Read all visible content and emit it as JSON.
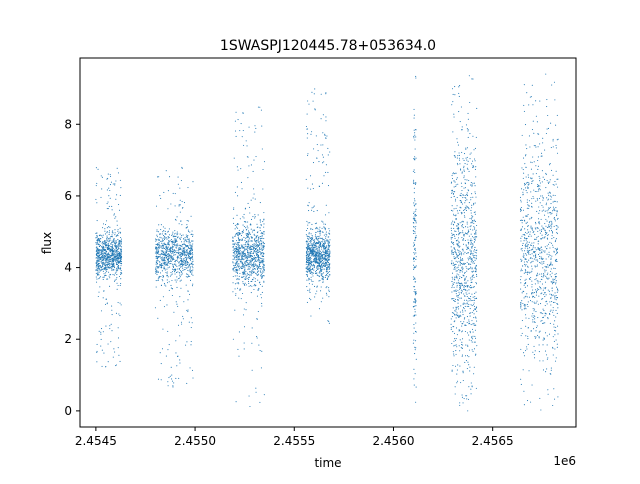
{
  "chart_data": {
    "type": "scatter",
    "title": "1SWASPJ120445.78+053634.0",
    "xlabel": "time",
    "ylabel": "flux",
    "x_offset_label": "1e6",
    "x_unit_multiplier": 1000000,
    "xlim": [
      2454420,
      2456920
    ],
    "ylim": [
      -0.45,
      9.85
    ],
    "x_ticks": [
      2454500,
      2455000,
      2455500,
      2456000,
      2456500
    ],
    "x_tick_labels": [
      "2.4545",
      "2.4550",
      "2.4555",
      "2.4560",
      "2.4565"
    ],
    "y_ticks": [
      0,
      2,
      4,
      6,
      8
    ],
    "y_tick_labels": [
      "0",
      "2",
      "4",
      "6",
      "8"
    ],
    "grid": false,
    "legend": "none",
    "marker_color": "#1f77b4",
    "series": [
      {
        "values": [
          {
            "x_range": [
              2454500,
              2454630
            ],
            "y_center": 4.35,
            "y_spread": 0.3,
            "y_min": 1.2,
            "y_max": 6.8,
            "note_level": "dense"
          },
          {
            "x_range": [
              2454800,
              2454990
            ],
            "y_center": 4.35,
            "y_spread": 0.35,
            "y_min": 0.6,
            "y_max": 6.8,
            "note_level": "dense"
          },
          {
            "x_range": [
              2455190,
              2455350
            ],
            "y_center": 4.35,
            "y_spread": 0.45,
            "y_min": 0.1,
            "y_max": 8.6,
            "note_level": "dense"
          },
          {
            "x_range": [
              2455560,
              2455680
            ],
            "y_center": 4.3,
            "y_spread": 0.35,
            "y_min": 2.3,
            "y_max": 9.1,
            "note_level": "dense"
          },
          {
            "x_range": [
              2456100,
              2456115
            ],
            "y_center": 4.3,
            "y_spread": 1.6,
            "y_min": 0.0,
            "y_max": 9.4,
            "note_level": "sparse"
          },
          {
            "x_range": [
              2456290,
              2456420
            ],
            "y_center": 4.3,
            "y_spread": 1.5,
            "y_min": 0.0,
            "y_max": 9.4,
            "note_level": "dense"
          },
          {
            "x_range": [
              2456640,
              2456830
            ],
            "y_center": 4.3,
            "y_spread": 1.5,
            "y_min": 0.0,
            "y_max": 9.4,
            "note_level": "dense"
          }
        ]
      }
    ]
  }
}
